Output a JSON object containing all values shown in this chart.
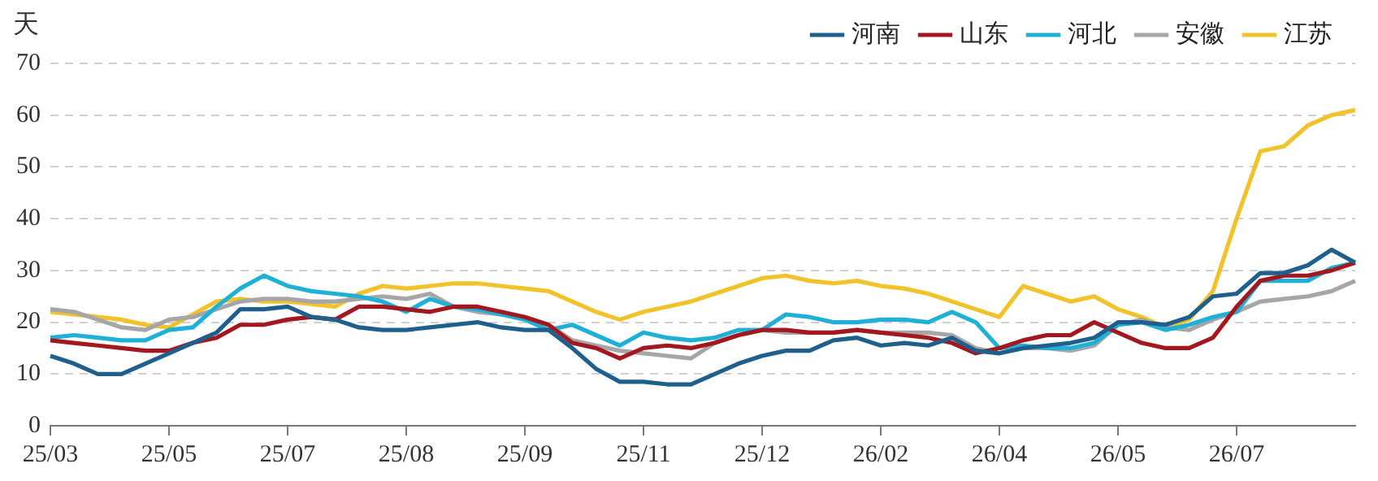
{
  "chart_data": {
    "type": "line",
    "ylabel": "天",
    "categories": [
      "25/03",
      null,
      null,
      null,
      null,
      "25/05",
      null,
      null,
      null,
      null,
      "25/07",
      null,
      null,
      null,
      null,
      "25/08",
      null,
      null,
      null,
      null,
      "25/09",
      null,
      null,
      null,
      null,
      "25/11",
      null,
      null,
      null,
      null,
      "25/12",
      null,
      null,
      null,
      null,
      "26/02",
      null,
      null,
      null,
      null,
      "26/04",
      null,
      null,
      null,
      null,
      "26/05",
      null,
      null,
      null,
      null,
      "26/07",
      null,
      null,
      null,
      null,
      null
    ],
    "series": [
      {
        "name": "河南",
        "color": "#1f5f8b",
        "values": [
          13.5,
          12,
          10,
          10,
          12,
          14,
          16,
          18,
          22.5,
          22.5,
          23,
          21,
          20.5,
          19,
          18.5,
          18.5,
          19,
          19.5,
          20,
          19,
          18.5,
          18.5,
          15,
          11,
          8.5,
          8.5,
          8,
          8,
          10,
          12,
          13.5,
          14.5,
          14.5,
          16.5,
          17,
          15.5,
          16,
          15.5,
          17,
          14.5,
          14,
          15,
          15.5,
          16,
          17,
          20,
          20,
          19.5,
          21,
          25,
          25.5,
          29.5,
          29.5,
          31,
          34,
          31.5
        ]
      },
      {
        "name": "山东",
        "color": "#a3171f",
        "values": [
          16.5,
          16,
          15.5,
          15,
          14.5,
          14.5,
          16,
          17,
          19.5,
          19.5,
          20.5,
          21,
          20.5,
          23,
          23,
          22.5,
          22,
          23,
          23,
          22,
          21,
          19.5,
          16,
          15,
          13,
          15,
          15.5,
          15,
          16,
          17.5,
          18.5,
          18.5,
          18,
          18,
          18.5,
          18,
          17.5,
          17,
          16,
          14,
          15,
          16.5,
          17.5,
          17.5,
          20,
          18,
          16,
          15,
          15,
          17,
          23,
          28,
          29,
          29,
          30,
          31.5
        ]
      },
      {
        "name": "河北",
        "color": "#1fb0d8",
        "values": [
          17,
          17.5,
          17,
          16.5,
          16.5,
          18.5,
          19,
          23,
          26.5,
          29,
          27,
          26,
          25.5,
          25,
          24,
          22,
          24.5,
          23,
          22.5,
          21.5,
          20.5,
          18.5,
          19.5,
          17.5,
          15.5,
          18,
          17,
          16.5,
          17,
          18.5,
          18.5,
          21.5,
          21,
          20,
          20,
          20.5,
          20.5,
          20,
          22,
          20,
          15,
          15.5,
          15,
          15,
          16,
          19.5,
          20,
          18.5,
          19.5,
          21,
          22,
          28,
          28,
          28,
          30.5,
          31.5
        ]
      },
      {
        "name": "安徽",
        "color": "#a6a6a6",
        "values": [
          22.5,
          22,
          20.5,
          19,
          18.5,
          20.5,
          21,
          22.5,
          24,
          24.5,
          24.5,
          24,
          24,
          24.5,
          25,
          24.5,
          25.5,
          23,
          22,
          21.5,
          21,
          19.5,
          16.5,
          15.5,
          14.5,
          14,
          13.5,
          13,
          16,
          17.5,
          18.5,
          18,
          18,
          18,
          18.5,
          18,
          18,
          18,
          17.5,
          15,
          14,
          15,
          15,
          14.5,
          15.5,
          19.5,
          20.5,
          19,
          18.5,
          20.5,
          22,
          24,
          24.5,
          25,
          26,
          28
        ]
      },
      {
        "name": "江苏",
        "color": "#f2c22a",
        "values": [
          22,
          21.5,
          21,
          20.5,
          19.5,
          19,
          21.5,
          24,
          24.5,
          24,
          24,
          23.5,
          23,
          25.5,
          27,
          26.5,
          27,
          27.5,
          27.5,
          27,
          26.5,
          26,
          24,
          22,
          20.5,
          22,
          23,
          24,
          25.5,
          27,
          28.5,
          29,
          28,
          27.5,
          28,
          27,
          26.5,
          25.5,
          24,
          22.5,
          21,
          27,
          25.5,
          24,
          25,
          22.5,
          21,
          19,
          20.5,
          26,
          40,
          53,
          54,
          58,
          60,
          61
        ]
      }
    ],
    "ylim": [
      0,
      70
    ],
    "yticks": [
      0,
      10,
      20,
      30,
      40,
      50,
      60,
      70
    ],
    "grid": "y",
    "legend": "top right",
    "marker": "none",
    "line_style": "solid"
  }
}
